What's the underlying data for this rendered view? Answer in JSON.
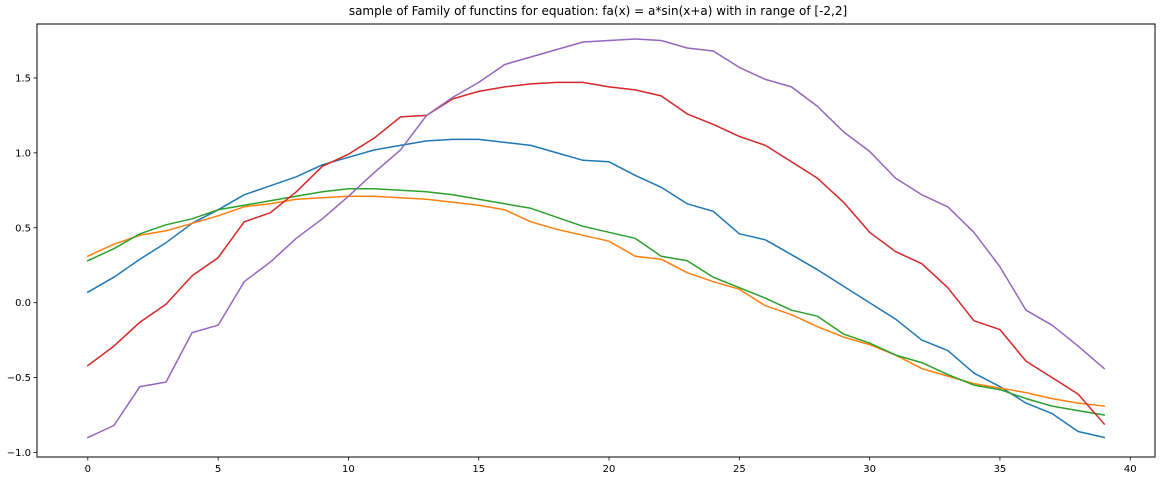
{
  "chart_data": {
    "type": "line",
    "title": "sample of Family of functins for equation: fa(x) = a*sin(x+a) with in range of [-2,2]",
    "xlabel": "",
    "ylabel": "",
    "xlim": [
      -1.95,
      40.95
    ],
    "ylim": [
      -1.03,
      1.86
    ],
    "xticks": [
      0,
      5,
      10,
      15,
      20,
      25,
      30,
      35,
      40
    ],
    "xtick_labels": [
      "0",
      "5",
      "10",
      "15",
      "20",
      "25",
      "30",
      "35",
      "40"
    ],
    "yticks": [
      -1.0,
      -0.5,
      0.0,
      0.5,
      1.0,
      1.5
    ],
    "ytick_labels": [
      "−1.0",
      "−0.5",
      "0.0",
      "0.5",
      "1.0",
      "1.5"
    ],
    "grid": false,
    "legend": false,
    "x": [
      0,
      1,
      2,
      3,
      4,
      5,
      6,
      7,
      8,
      9,
      10,
      11,
      12,
      13,
      14,
      15,
      16,
      17,
      18,
      19,
      20,
      21,
      22,
      23,
      24,
      25,
      26,
      27,
      28,
      29,
      30,
      31,
      32,
      33,
      34,
      35,
      36,
      37,
      38,
      39
    ],
    "series": [
      {
        "color": "#1f77b4",
        "values": [
          0.07,
          0.17,
          0.29,
          0.4,
          0.53,
          0.62,
          0.72,
          0.78,
          0.84,
          0.92,
          0.97,
          1.02,
          1.05,
          1.08,
          1.09,
          1.09,
          1.07,
          1.05,
          1.0,
          0.95,
          0.94,
          0.85,
          0.77,
          0.66,
          0.61,
          0.46,
          0.42,
          0.32,
          0.22,
          0.11,
          0.0,
          -0.11,
          -0.25,
          -0.32,
          -0.47,
          -0.56,
          -0.67,
          -0.74,
          -0.86,
          -0.9
        ]
      },
      {
        "color": "#ff7f0e",
        "values": [
          0.31,
          0.39,
          0.45,
          0.48,
          0.53,
          0.58,
          0.64,
          0.66,
          0.69,
          0.7,
          0.71,
          0.71,
          0.7,
          0.69,
          0.67,
          0.65,
          0.62,
          0.54,
          0.49,
          0.45,
          0.41,
          0.31,
          0.29,
          0.2,
          0.14,
          0.09,
          -0.02,
          -0.08,
          -0.16,
          -0.23,
          -0.28,
          -0.35,
          -0.44,
          -0.49,
          -0.54,
          -0.57,
          -0.6,
          -0.64,
          -0.67,
          -0.69
        ]
      },
      {
        "color": "#2ca02c",
        "values": [
          0.28,
          0.36,
          0.46,
          0.52,
          0.56,
          0.62,
          0.65,
          0.68,
          0.71,
          0.74,
          0.76,
          0.76,
          0.75,
          0.74,
          0.72,
          0.69,
          0.66,
          0.63,
          0.57,
          0.51,
          0.47,
          0.43,
          0.31,
          0.28,
          0.17,
          0.1,
          0.03,
          -0.05,
          -0.09,
          -0.21,
          -0.27,
          -0.35,
          -0.4,
          -0.48,
          -0.55,
          -0.58,
          -0.64,
          -0.69,
          -0.72,
          -0.75
        ]
      },
      {
        "color": "#d62728",
        "values": [
          -0.42,
          -0.29,
          -0.13,
          -0.01,
          0.18,
          0.3,
          0.54,
          0.6,
          0.74,
          0.91,
          0.99,
          1.1,
          1.24,
          1.25,
          1.36,
          1.41,
          1.44,
          1.46,
          1.47,
          1.47,
          1.44,
          1.42,
          1.38,
          1.26,
          1.19,
          1.11,
          1.05,
          0.94,
          0.83,
          0.67,
          0.47,
          0.34,
          0.26,
          0.1,
          -0.12,
          -0.18,
          -0.39,
          -0.5,
          -0.61,
          -0.81
        ]
      },
      {
        "color": "#9467bd",
        "values": [
          -0.9,
          -0.82,
          -0.56,
          -0.53,
          -0.2,
          -0.15,
          0.14,
          0.27,
          0.43,
          0.56,
          0.71,
          0.87,
          1.02,
          1.25,
          1.37,
          1.47,
          1.59,
          1.64,
          1.69,
          1.74,
          1.75,
          1.76,
          1.75,
          1.7,
          1.68,
          1.57,
          1.49,
          1.44,
          1.31,
          1.14,
          1.01,
          0.83,
          0.72,
          0.64,
          0.47,
          0.24,
          -0.05,
          -0.15,
          -0.29,
          -0.44
        ]
      }
    ]
  }
}
